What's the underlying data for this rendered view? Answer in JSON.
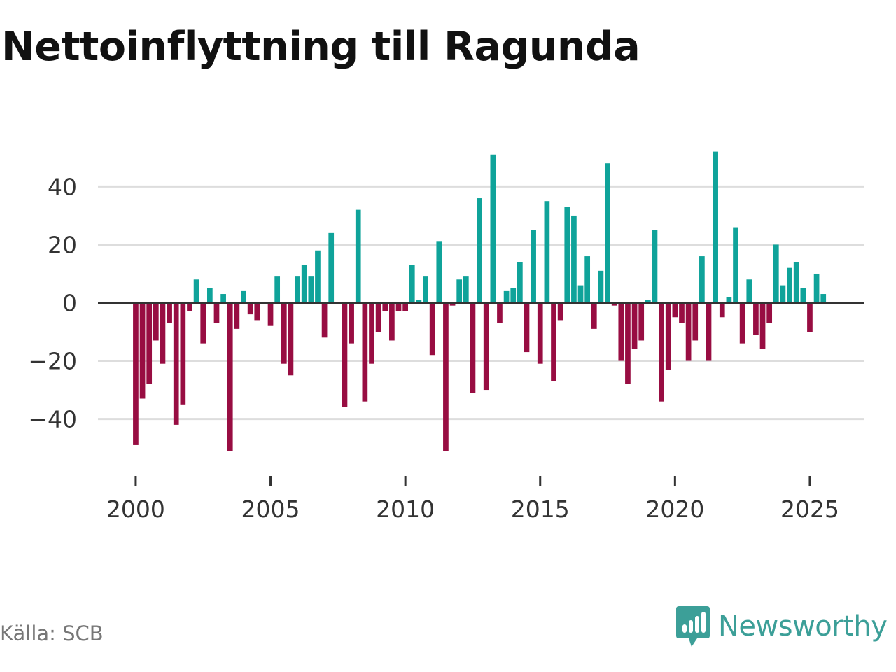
{
  "title": "Nettoinflyttning till Ragunda",
  "source": "Källa: SCB",
  "brand": {
    "name": "Newsworthy",
    "icon": "newsworthy-logo-icon"
  },
  "colors": {
    "positive": "#0fa39a",
    "negative": "#980d42",
    "grid": "#dddddd",
    "zero_line": "#333333",
    "brand": "#3c9f98"
  },
  "chart_data": {
    "type": "bar",
    "title": "Nettoinflyttning till Ragunda",
    "xlabel": "",
    "ylabel": "",
    "period": "quarterly",
    "x_start": 2000.0,
    "x_step": 0.25,
    "xlim": [
      1998.6,
      2027.0
    ],
    "ylim": [
      -56,
      56
    ],
    "yticks": [
      -40,
      -20,
      0,
      20,
      40
    ],
    "ytick_labels": [
      "−40",
      "−20",
      "0",
      "20",
      "40"
    ],
    "xticks": [
      2000,
      2005,
      2010,
      2015,
      2020,
      2025
    ],
    "xtick_labels": [
      "2000",
      "2005",
      "2010",
      "2015",
      "2020",
      "2025"
    ],
    "grid": true,
    "values": [
      -49,
      -33,
      -28,
      -13,
      -21,
      -7,
      -42,
      -35,
      -3,
      8,
      -14,
      5,
      -7,
      3,
      -51,
      -9,
      4,
      -4,
      -6,
      0,
      -8,
      9,
      -21,
      -25,
      9,
      13,
      9,
      18,
      -12,
      24,
      0,
      -36,
      -14,
      32,
      -34,
      -21,
      -10,
      -3,
      -13,
      -3,
      -3,
      13,
      1,
      9,
      -18,
      21,
      -51,
      -1,
      8,
      9,
      -31,
      36,
      -30,
      51,
      -7,
      4,
      5,
      14,
      -17,
      25,
      -21,
      35,
      -27,
      -6,
      33,
      30,
      6,
      16,
      -9,
      11,
      48,
      -1,
      -20,
      -28,
      -16,
      -13,
      1,
      25,
      -34,
      -23,
      -5,
      -7,
      -20,
      -13,
      16,
      -20,
      52,
      -5,
      2,
      26,
      -14,
      8,
      -11,
      -16,
      -7,
      20,
      6,
      12,
      14,
      5,
      -10,
      10,
      3
    ]
  }
}
